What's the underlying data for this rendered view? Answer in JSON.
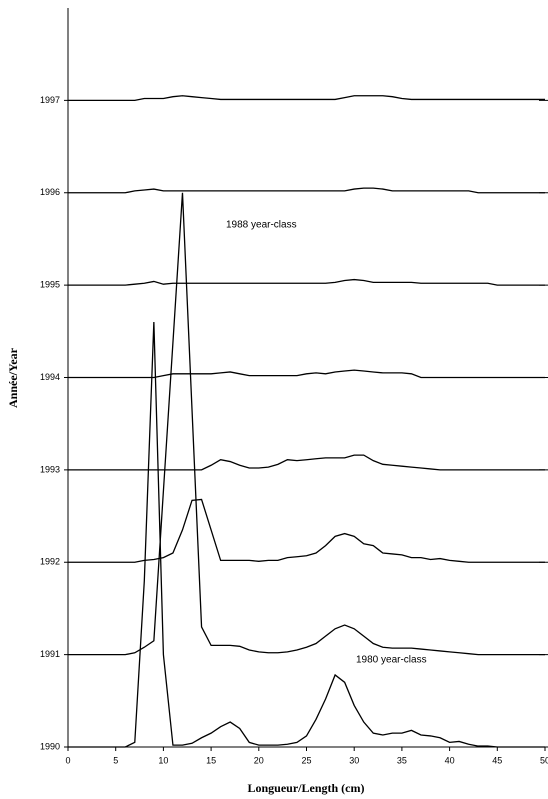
{
  "chart_data": {
    "type": "line",
    "xlabel": "Longueur/Length (cm)",
    "ylabel": "Année/Year",
    "annotations": [
      "1988 year-class",
      "1980 year-class"
    ],
    "xlim": [
      0,
      50
    ],
    "xticks": [
      0,
      5,
      10,
      15,
      20,
      25,
      30,
      35,
      40,
      45,
      50
    ],
    "ylim": [
      1990,
      1998
    ],
    "yticks": [
      1990,
      1991,
      1992,
      1993,
      1994,
      1995,
      1996,
      1997
    ],
    "x": [
      0,
      1,
      2,
      3,
      4,
      5,
      6,
      7,
      8,
      9,
      10,
      11,
      12,
      13,
      14,
      15,
      16,
      17,
      18,
      19,
      20,
      21,
      22,
      23,
      24,
      25,
      26,
      27,
      28,
      29,
      30,
      31,
      32,
      33,
      34,
      35,
      36,
      37,
      38,
      39,
      40,
      41,
      42,
      43,
      44,
      45,
      46,
      47,
      48,
      49,
      50
    ],
    "series": [
      {
        "color": "#000000",
        "values": [
          1990,
          1990,
          1990,
          1990,
          1990,
          1990,
          1990,
          1990.05,
          1991.8,
          1994.6,
          1991,
          1990.02,
          1990.02,
          1990.04,
          1990.1,
          1990.15,
          1990.22,
          1990.27,
          1990.2,
          1990.05,
          1990.02,
          1990.02,
          1990.02,
          1990.03,
          1990.05,
          1990.12,
          1990.3,
          1990.52,
          1990.78,
          1990.7,
          1990.45,
          1990.27,
          1990.15,
          1990.13,
          1990.15,
          1990.15,
          1990.18,
          1990.13,
          1990.12,
          1990.1,
          1990.05,
          1990.06,
          1990.03,
          1990.01,
          1990.01,
          1990,
          1990,
          1990,
          1990,
          1990,
          1990
        ]
      },
      {
        "color": "#000000",
        "values": [
          1991,
          1991,
          1991,
          1991,
          1991,
          1991,
          1991,
          1991.02,
          1991.08,
          1991.15,
          1992.77,
          1994.38,
          1996,
          1993.65,
          1991.3,
          1991.1,
          1991.1,
          1991.1,
          1991.09,
          1991.05,
          1991.03,
          1991.02,
          1991.02,
          1991.03,
          1991.05,
          1991.08,
          1991.12,
          1991.2,
          1991.28,
          1991.32,
          1991.28,
          1991.2,
          1991.12,
          1991.08,
          1991.07,
          1991.07,
          1991.07,
          1991.06,
          1991.05,
          1991.04,
          1991.03,
          1991.02,
          1991.01,
          1991,
          1991,
          1991,
          1991,
          1991,
          1991,
          1991,
          1991
        ]
      },
      {
        "color": "#000000",
        "values": [
          1992,
          1992,
          1992,
          1992,
          1992,
          1992,
          1992,
          1992,
          1992.02,
          1992.03,
          1992.05,
          1992.1,
          1992.35,
          1992.67,
          1992.68,
          1992.35,
          1992.02,
          1992.02,
          1992.02,
          1992.02,
          1992.01,
          1992.02,
          1992.02,
          1992.05,
          1992.06,
          1992.07,
          1992.1,
          1992.18,
          1992.28,
          1992.31,
          1992.28,
          1992.2,
          1992.18,
          1992.1,
          1992.09,
          1992.08,
          1992.05,
          1992.05,
          1992.03,
          1992.04,
          1992.02,
          1992.01,
          1992,
          1992,
          1992,
          1992,
          1992,
          1992,
          1992,
          1992,
          1992
        ]
      },
      {
        "color": "#000000",
        "values": [
          1993,
          1993,
          1993,
          1993,
          1993,
          1993,
          1993,
          1993,
          1993,
          1993,
          1993,
          1993,
          1993,
          1993,
          1993,
          1993.05,
          1993.11,
          1993.09,
          1993.05,
          1993.02,
          1993.02,
          1993.03,
          1993.06,
          1993.11,
          1993.1,
          1993.11,
          1993.12,
          1993.13,
          1993.13,
          1993.13,
          1993.16,
          1993.16,
          1993.1,
          1993.06,
          1993.05,
          1993.04,
          1993.03,
          1993.02,
          1993.01,
          1993,
          1993,
          1993,
          1993,
          1993,
          1993,
          1993,
          1993,
          1993,
          1993,
          1993,
          1993
        ]
      },
      {
        "color": "#000000",
        "values": [
          1994,
          1994,
          1994,
          1994,
          1994,
          1994,
          1994,
          1994,
          1994,
          1994,
          1994.02,
          1994.04,
          1994.04,
          1994.04,
          1994.04,
          1994.04,
          1994.05,
          1994.06,
          1994.04,
          1994.02,
          1994.02,
          1994.02,
          1994.02,
          1994.02,
          1994.02,
          1994.04,
          1994.05,
          1994.04,
          1994.06,
          1994.07,
          1994.08,
          1994.07,
          1994.06,
          1994.05,
          1994.05,
          1994.05,
          1994.04,
          1994,
          1994,
          1994,
          1994,
          1994,
          1994,
          1994,
          1994,
          1994,
          1994,
          1994,
          1994,
          1994,
          1994
        ]
      },
      {
        "color": "#000000",
        "values": [
          1995,
          1995,
          1995,
          1995,
          1995,
          1995,
          1995,
          1995.01,
          1995.02,
          1995.04,
          1995.01,
          1995.02,
          1995.02,
          1995.02,
          1995.02,
          1995.02,
          1995.02,
          1995.02,
          1995.02,
          1995.02,
          1995.02,
          1995.02,
          1995.02,
          1995.02,
          1995.02,
          1995.02,
          1995.02,
          1995.02,
          1995.03,
          1995.05,
          1995.06,
          1995.05,
          1995.03,
          1995.03,
          1995.03,
          1995.03,
          1995.03,
          1995.02,
          1995.02,
          1995.02,
          1995.02,
          1995.02,
          1995.02,
          1995.02,
          1995.02,
          1995,
          1995,
          1995,
          1995,
          1995,
          1995
        ]
      },
      {
        "color": "#000000",
        "values": [
          1996,
          1996,
          1996,
          1996,
          1996,
          1996,
          1996,
          1996.02,
          1996.03,
          1996.04,
          1996.02,
          1996.02,
          1996.02,
          1996.02,
          1996.02,
          1996.02,
          1996.02,
          1996.02,
          1996.02,
          1996.02,
          1996.02,
          1996.02,
          1996.02,
          1996.02,
          1996.02,
          1996.02,
          1996.02,
          1996.02,
          1996.02,
          1996.02,
          1996.04,
          1996.05,
          1996.05,
          1996.04,
          1996.02,
          1996.02,
          1996.02,
          1996.02,
          1996.02,
          1996.02,
          1996.02,
          1996.02,
          1996.02,
          1996,
          1996,
          1996,
          1996,
          1996,
          1996,
          1996,
          1996
        ]
      },
      {
        "color": "#000000",
        "values": [
          1997,
          1997,
          1997,
          1997,
          1997,
          1997,
          1997,
          1997,
          1997.02,
          1997.02,
          1997.02,
          1997.04,
          1997.05,
          1997.04,
          1997.03,
          1997.02,
          1997.01,
          1997.01,
          1997.01,
          1997.01,
          1997.01,
          1997.01,
          1997.01,
          1997.01,
          1997.01,
          1997.01,
          1997.01,
          1997.01,
          1997.01,
          1997.03,
          1997.05,
          1997.05,
          1997.05,
          1997.05,
          1997.04,
          1997.02,
          1997.01,
          1997.01,
          1997.01,
          1997.01,
          1997.01,
          1997.01,
          1997.01,
          1997.01,
          1997.01,
          1997.01,
          1997.01,
          1997.01,
          1997.01,
          1997.01,
          1997.01
        ]
      }
    ]
  }
}
